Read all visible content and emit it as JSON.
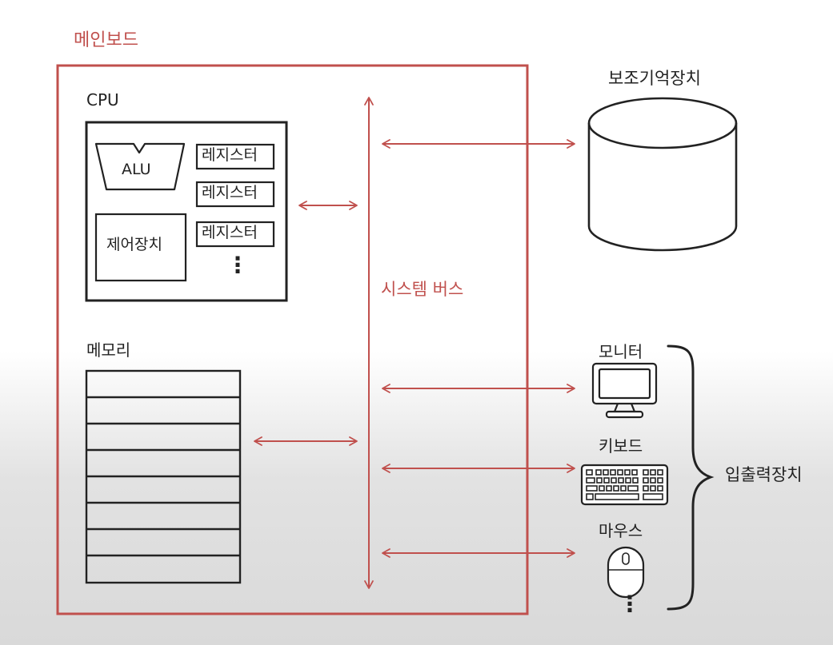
{
  "mainboard": {
    "label": "메인보드"
  },
  "cpu": {
    "label": "CPU",
    "alu": "ALU",
    "control_unit": "제어장치",
    "registers": [
      "레지스터",
      "레지스터",
      "레지스터"
    ],
    "more": "⋮"
  },
  "memory": {
    "label": "메모리",
    "rows": 8
  },
  "system_bus": {
    "label": "시스템 버스"
  },
  "storage": {
    "label": "보조기억장치"
  },
  "io": {
    "group_label": "입출력장치",
    "devices": [
      {
        "label": "모니터",
        "icon": "monitor-icon"
      },
      {
        "label": "키보드",
        "icon": "keyboard-icon"
      },
      {
        "label": "마우스",
        "icon": "mouse-icon"
      }
    ],
    "more": "⋮"
  },
  "colors": {
    "accent": "#c0504d",
    "ink": "#222222"
  }
}
